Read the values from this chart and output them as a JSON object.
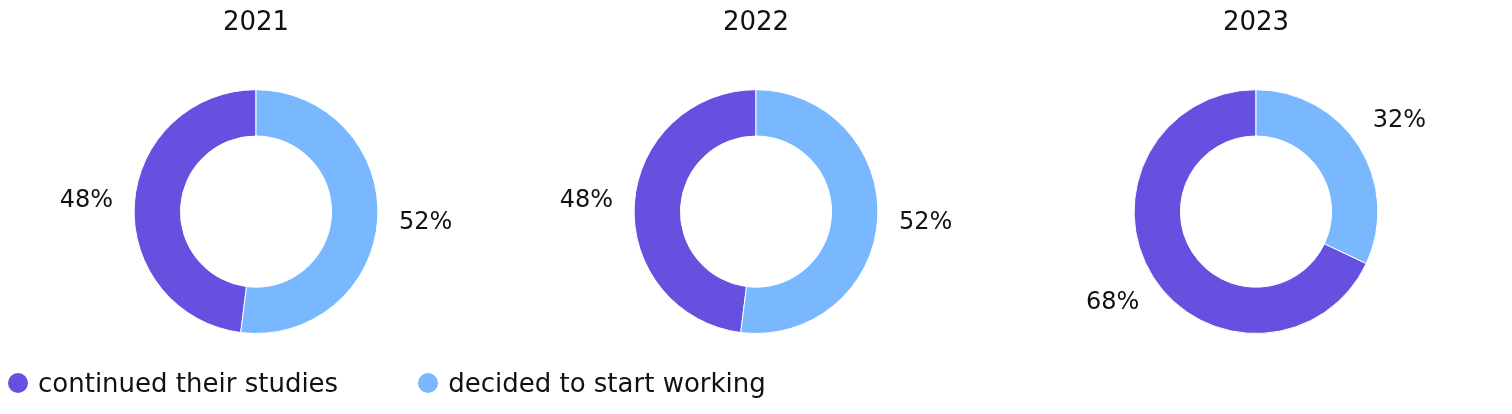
{
  "chart_data": [
    {
      "type": "donut",
      "title": "2021",
      "categories": [
        "continued their studies",
        "decided to start working"
      ],
      "values": [
        48,
        52
      ],
      "value_labels": [
        "48%",
        "52%"
      ],
      "colors": [
        "#6650e0",
        "#79b8ff"
      ],
      "legend": "bottom"
    },
    {
      "type": "donut",
      "title": "2022",
      "categories": [
        null,
        null
      ],
      "values": [
        48,
        52
      ],
      "value_labels": [
        "48%",
        "52%"
      ],
      "colors": [
        "#6650e0",
        "#79b8ff"
      ]
    },
    {
      "type": "donut",
      "title": "2023",
      "categories": [
        null,
        null
      ],
      "values": [
        68,
        32
      ],
      "value_labels": [
        "68%",
        "32%"
      ],
      "colors": [
        "#6650e0",
        "#79b8ff"
      ]
    }
  ]
}
